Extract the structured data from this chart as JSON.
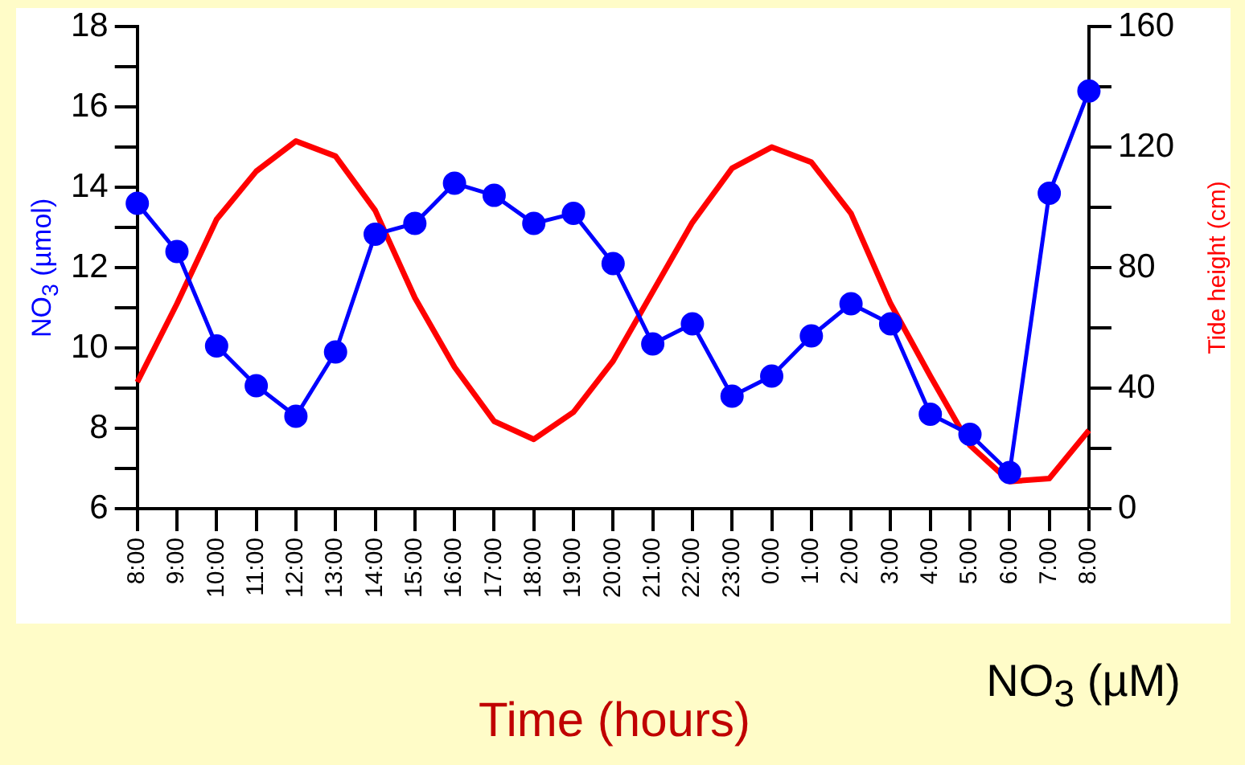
{
  "chart_data": {
    "type": "line",
    "categories": [
      "8:00",
      "9:00",
      "10:00",
      "11:00",
      "12:00",
      "13:00",
      "14:00",
      "15:00",
      "16:00",
      "17:00",
      "18:00",
      "19:00",
      "20:00",
      "21:00",
      "22:00",
      "23:00",
      "0:00",
      "1:00",
      "2:00",
      "3:00",
      "4:00",
      "5:00",
      "6:00",
      "7:00",
      "8:00"
    ],
    "series": [
      {
        "color": "#0000ff",
        "marker": "circle",
        "values": [
          13.6,
          12.4,
          10.05,
          9.06,
          8.3,
          9.9,
          12.83,
          13.1,
          14.1,
          13.8,
          13.1,
          13.35,
          12.1,
          10.1,
          10.6,
          8.8,
          9.3,
          10.3,
          11.1,
          10.6,
          8.35,
          7.85,
          6.9,
          13.85,
          16.4
        ]
      },
      {
        "color": "#ff0000",
        "marker": "none",
        "axis": "y2",
        "values": [
          42,
          68,
          96,
          112,
          122,
          117,
          99,
          70,
          47,
          29,
          23,
          32,
          49,
          72,
          95,
          113,
          120,
          115,
          98,
          68,
          44,
          21,
          9,
          10,
          26
        ]
      }
    ],
    "xlabel": "Time (hours)",
    "ylabel": "NO$_{3}$ (µmol)",
    "y2label": "Tide height (cm)",
    "ylim": [
      6,
      18
    ],
    "yticks": [
      6,
      {
        "value": 7,
        "label": null
      },
      8,
      {
        "value": 9,
        "label": null
      },
      10,
      {
        "value": 11,
        "label": null
      },
      12,
      {
        "value": 13,
        "label": null
      },
      14,
      {
        "value": 15,
        "label": null
      },
      16,
      {
        "value": 17,
        "label": null
      },
      18
    ],
    "y2lim": [
      0,
      160
    ],
    "y2ticks": [
      0,
      {
        "value": 20,
        "label": null
      },
      40,
      {
        "value": 60,
        "label": null
      },
      80,
      {
        "value": 100,
        "label": null
      },
      120,
      {
        "value": 140,
        "label": null
      },
      160
    ],
    "annotations": [
      "NO$_{3}$ (µM)"
    ],
    "grid": false,
    "legend": false
  }
}
